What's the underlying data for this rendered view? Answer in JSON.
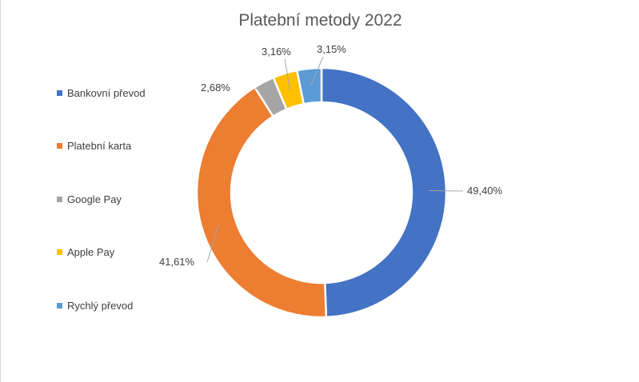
{
  "chart_data": {
    "type": "pie",
    "variant": "doughnut",
    "title": "Platební metody 2022",
    "categories": [
      "Bankovní převod",
      "Platební karta",
      "Google Pay",
      "Apple Pay",
      "Rychlý převod"
    ],
    "values": [
      49.4,
      41.61,
      2.68,
      3.16,
      3.15
    ],
    "data_labels": [
      "49,40%",
      "41,61%",
      "2,68%",
      "3,16%",
      "3,15%"
    ],
    "colors": [
      "#4472c4",
      "#ed7d31",
      "#a5a5a5",
      "#ffc000",
      "#5b9bd5"
    ],
    "legend_position": "left"
  }
}
